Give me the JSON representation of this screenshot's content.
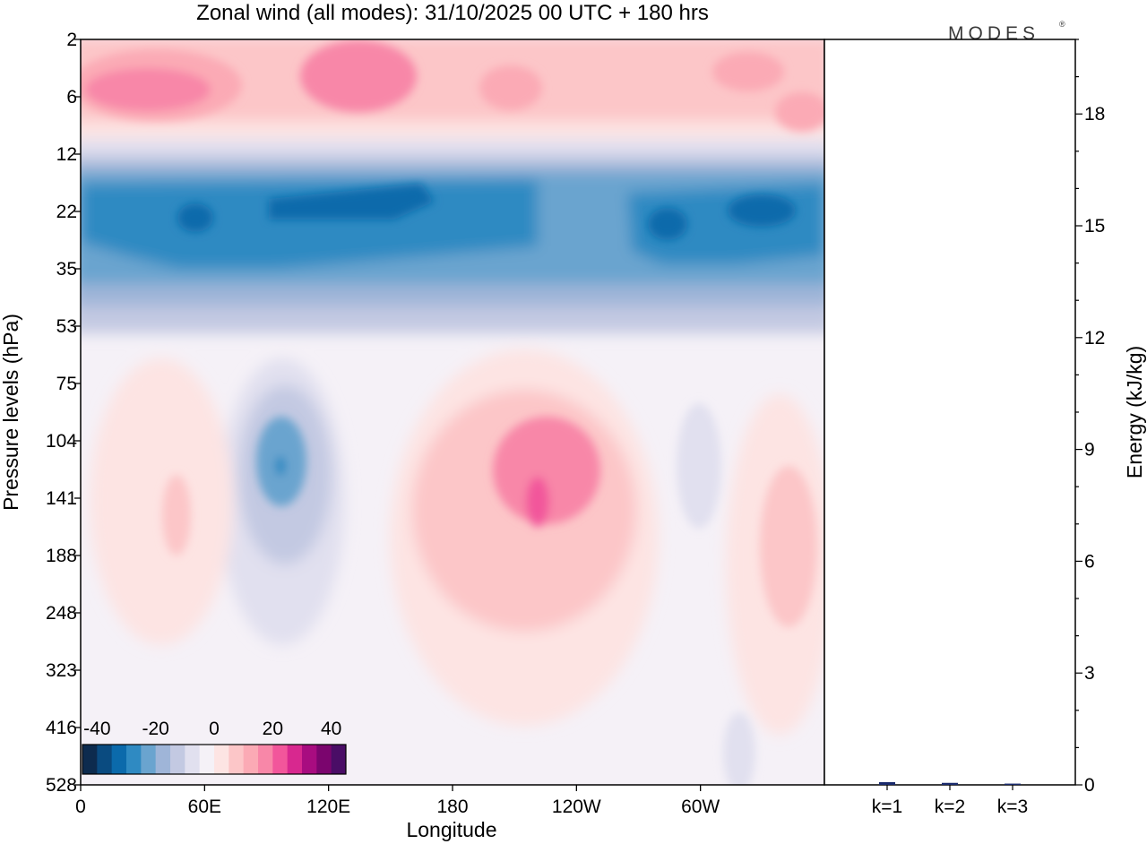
{
  "chart_data": [
    {
      "type": "heatmap",
      "title": "Zonal wind (all modes):  31/10/2025  00 UTC  + 180 hrs",
      "xlabel": "Longitude",
      "ylabel": "Pressure levels (hPa)",
      "x_ticks": [
        "0",
        "60E",
        "120E",
        "180",
        "120W",
        "60W"
      ],
      "x_tick_values": [
        0,
        60,
        120,
        180,
        240,
        300
      ],
      "xlim": [
        0,
        360
      ],
      "y_ticks": [
        "2",
        "6",
        "12",
        "22",
        "35",
        "53",
        "75",
        "104",
        "141",
        "188",
        "248",
        "323",
        "416",
        "528"
      ],
      "colorbar": {
        "labels": [
          "-40",
          "-20",
          "0",
          "20",
          "40"
        ],
        "label_values": [
          -40,
          -20,
          0,
          20,
          40
        ],
        "range": [
          -45,
          45
        ],
        "colors": [
          "#0d2b4e",
          "#0a4b80",
          "#0b6aab",
          "#2f8ac2",
          "#6aa4cf",
          "#9fb5d8",
          "#c3c9e2",
          "#e1e0ef",
          "#f5f1f7",
          "#fde4e3",
          "#fcc6c8",
          "#fbaab5",
          "#f887a8",
          "#f2569b",
          "#d8288f",
          "#a80c80",
          "#7b056e",
          "#4a0d66"
        ]
      },
      "fields": [
        {
          "name": "upper-positive-band",
          "lon": [
            0,
            360
          ],
          "levels": [
            "2",
            "10"
          ],
          "value": 14
        },
        {
          "name": "upper-positive-core-west",
          "lon": [
            5,
            80
          ],
          "levels": [
            "3",
            "7"
          ],
          "value": 20
        },
        {
          "name": "upper-positive-core-mid",
          "lon": [
            110,
            160
          ],
          "levels": [
            "2",
            "5"
          ],
          "value": 20
        },
        {
          "name": "easterly-jet",
          "lon": [
            0,
            360
          ],
          "levels": [
            "14",
            "50"
          ],
          "value": -28
        },
        {
          "name": "easterly-core-east",
          "lon": [
            90,
            170
          ],
          "levels": [
            "17",
            "27"
          ],
          "value": -36
        },
        {
          "name": "easterly-core-west",
          "lon": [
            320,
            345
          ],
          "levels": [
            "18",
            "26"
          ],
          "value": -36
        },
        {
          "name": "negative-cell-asia",
          "lon": [
            75,
            125
          ],
          "levels": [
            "85",
            "240"
          ],
          "value": -14
        },
        {
          "name": "negative-core-asia",
          "lon": [
            90,
            105
          ],
          "levels": [
            "115",
            "150"
          ],
          "value": -26
        },
        {
          "name": "positive-cell-pacific",
          "lon": [
            160,
            275
          ],
          "levels": [
            "85",
            "330"
          ],
          "value": 14
        },
        {
          "name": "positive-core-pacific",
          "lon": [
            200,
            240
          ],
          "levels": [
            "110",
            "180"
          ],
          "value": 28
        },
        {
          "name": "positive-cell-atlantic",
          "lon": [
            310,
            360
          ],
          "levels": [
            "110",
            "310"
          ],
          "value": 10
        }
      ]
    },
    {
      "type": "bar",
      "title": "",
      "xlabel": "",
      "ylabel": "Energy (kJ/kg)",
      "categories": [
        "k=1",
        "k=2",
        "k=3"
      ],
      "values": [
        0.05,
        0.03,
        0.01
      ],
      "ylim": [
        0,
        20
      ],
      "y_ticks": [
        "0",
        "3",
        "6",
        "9",
        "12",
        "15",
        "18"
      ],
      "y_tick_values": [
        0,
        3,
        6,
        9,
        12,
        15,
        18
      ],
      "bar_color": "#1a2a6c"
    }
  ],
  "logo": "MODES",
  "logo_mark": "®"
}
